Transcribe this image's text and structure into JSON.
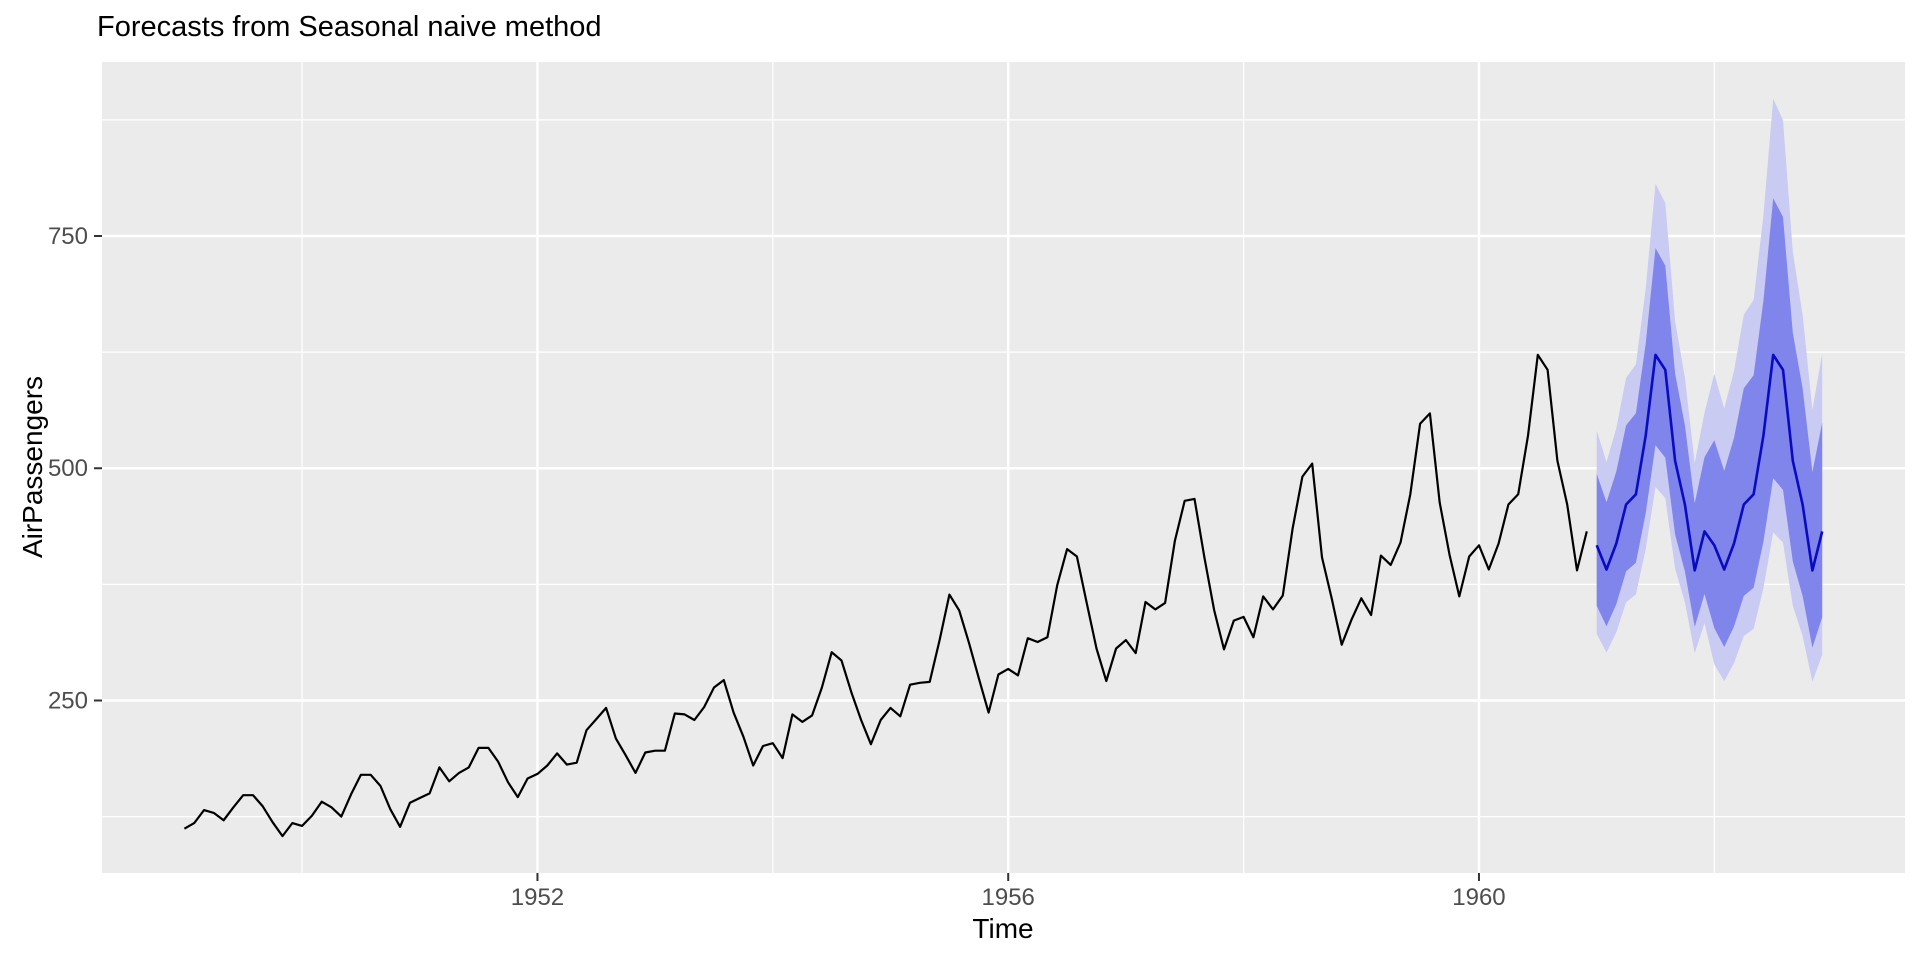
{
  "chart_data": {
    "type": "line",
    "title": "Forecasts from Seasonal naive method",
    "xlabel": "Time",
    "ylabel": "AirPassengers",
    "x_ticks": [
      1952,
      1956,
      1960
    ],
    "x_minor_gridlines": [
      1950,
      1954,
      1958,
      1962
    ],
    "y_ticks": [
      250,
      500,
      750
    ],
    "y_minor_gridlines": [
      125,
      375,
      625,
      875
    ],
    "xlim": [
      1948.3,
      1963.62
    ],
    "ylim": [
      64.3,
      937.3
    ],
    "grid": true,
    "legend_position": "none",
    "colors": {
      "panel_background": "#EBEBEB",
      "gridline": "#FFFFFF",
      "observed_line": "#000000",
      "forecast_line": "#0A0AC0",
      "interval_80_fill": "#8085EB",
      "interval_95_fill": "#C9CBF2",
      "tick_label": "#4D4D4D",
      "tick_mark": "#333333",
      "title_text": "#000000"
    },
    "series": [
      {
        "name": "AirPassengers (observed)",
        "start": 1949,
        "frequency": 12,
        "values": [
          112,
          118,
          132,
          129,
          121,
          135,
          148,
          148,
          136,
          119,
          104,
          118,
          115,
          126,
          141,
          135,
          125,
          149,
          170,
          170,
          158,
          133,
          114,
          140,
          145,
          150,
          178,
          163,
          172,
          178,
          199,
          199,
          184,
          162,
          146,
          166,
          171,
          180,
          193,
          181,
          183,
          218,
          230,
          242,
          209,
          191,
          172,
          194,
          196,
          196,
          236,
          235,
          229,
          243,
          264,
          272,
          237,
          211,
          180,
          201,
          204,
          188,
          235,
          227,
          234,
          264,
          302,
          293,
          259,
          229,
          203,
          229,
          242,
          233,
          267,
          269,
          270,
          315,
          364,
          347,
          312,
          274,
          237,
          278,
          284,
          277,
          317,
          313,
          318,
          374,
          413,
          405,
          355,
          306,
          271,
          306,
          315,
          301,
          356,
          348,
          355,
          422,
          465,
          467,
          404,
          347,
          305,
          336,
          340,
          318,
          362,
          348,
          363,
          435,
          491,
          505,
          404,
          359,
          310,
          337,
          360,
          342,
          406,
          396,
          420,
          472,
          548,
          559,
          463,
          407,
          362,
          405,
          417,
          391,
          419,
          461,
          472,
          535,
          622,
          606,
          508,
          461,
          390,
          432
        ]
      },
      {
        "name": "Seasonal naive point forecast",
        "start": 1961,
        "frequency": 12,
        "values": [
          417,
          391,
          419,
          461,
          472,
          535,
          622,
          606,
          508,
          461,
          390,
          432,
          417,
          391,
          419,
          461,
          472,
          535,
          622,
          606,
          508,
          461,
          390,
          432
        ]
      }
    ],
    "prediction_intervals": [
      {
        "level": 95,
        "start": 1961,
        "frequency": 12,
        "lower": [
          321.7,
          301.7,
          323.3,
          355.7,
          364.2,
          412.8,
          479.9,
          467.6,
          392.0,
          355.7,
          300.9,
          333.3,
          288.9,
          270.9,
          290.3,
          319.4,
          327.1,
          370.7,
          431.0,
          419.9,
          352.0,
          319.4,
          270.2,
          299.3
        ],
        "upper": [
          540.5,
          506.8,
          543.1,
          597.5,
          611.8,
          693.4,
          806.2,
          785.4,
          658.4,
          597.5,
          505.5,
          559.9,
          601.8,
          564.3,
          604.7,
          665.3,
          681.2,
          772.1,
          897.7,
          874.6,
          733.1,
          665.3,
          562.8,
          623.5
        ]
      },
      {
        "level": 80,
        "start": 1961,
        "frequency": 12,
        "lower": [
          351.9,
          330.0,
          353.6,
          389.0,
          398.3,
          451.5,
          524.9,
          511.4,
          428.7,
          389.0,
          329.1,
          364.6,
          328.0,
          307.6,
          329.6,
          362.6,
          371.3,
          420.8,
          489.3,
          476.7,
          399.6,
          362.6,
          306.8,
          339.8
        ],
        "upper": [
          494.1,
          463.3,
          496.5,
          546.3,
          559.3,
          634.0,
          737.1,
          718.1,
          602.0,
          546.3,
          462.2,
          511.9,
          530.1,
          497.1,
          532.7,
          586.1,
          600.1,
          680.1,
          790.7,
          770.4,
          645.8,
          586.1,
          495.8,
          549.2
        ]
      }
    ]
  }
}
